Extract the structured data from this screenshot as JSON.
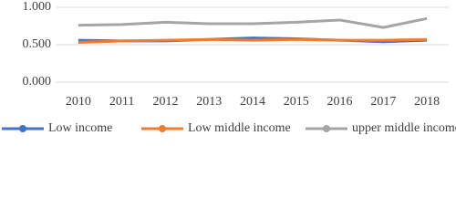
{
  "chart_data": {
    "type": "line",
    "categories": [
      "2010",
      "2011",
      "2012",
      "2013",
      "2014",
      "2015",
      "2016",
      "2017",
      "2018"
    ],
    "series": [
      {
        "name": "Low income",
        "color": "#4472c4",
        "values": [
          0.56,
          0.55,
          0.55,
          0.57,
          0.59,
          0.58,
          0.56,
          0.54,
          0.56
        ]
      },
      {
        "name": "Low middle income",
        "color": "#ed7d31",
        "values": [
          0.53,
          0.55,
          0.56,
          0.57,
          0.56,
          0.57,
          0.56,
          0.56,
          0.57
        ]
      },
      {
        "name": "upper middle income",
        "color": "#a5a5a5",
        "values": [
          0.76,
          0.77,
          0.8,
          0.78,
          0.78,
          0.8,
          0.83,
          0.73,
          0.85
        ]
      }
    ],
    "ylim": [
      0,
      1
    ],
    "yticks": [
      {
        "value": 0,
        "label": "0.000"
      },
      {
        "value": 0.5,
        "label": "0.500"
      },
      {
        "value": 1,
        "label": "1.000"
      }
    ],
    "grid": true,
    "legend": "bottom"
  }
}
